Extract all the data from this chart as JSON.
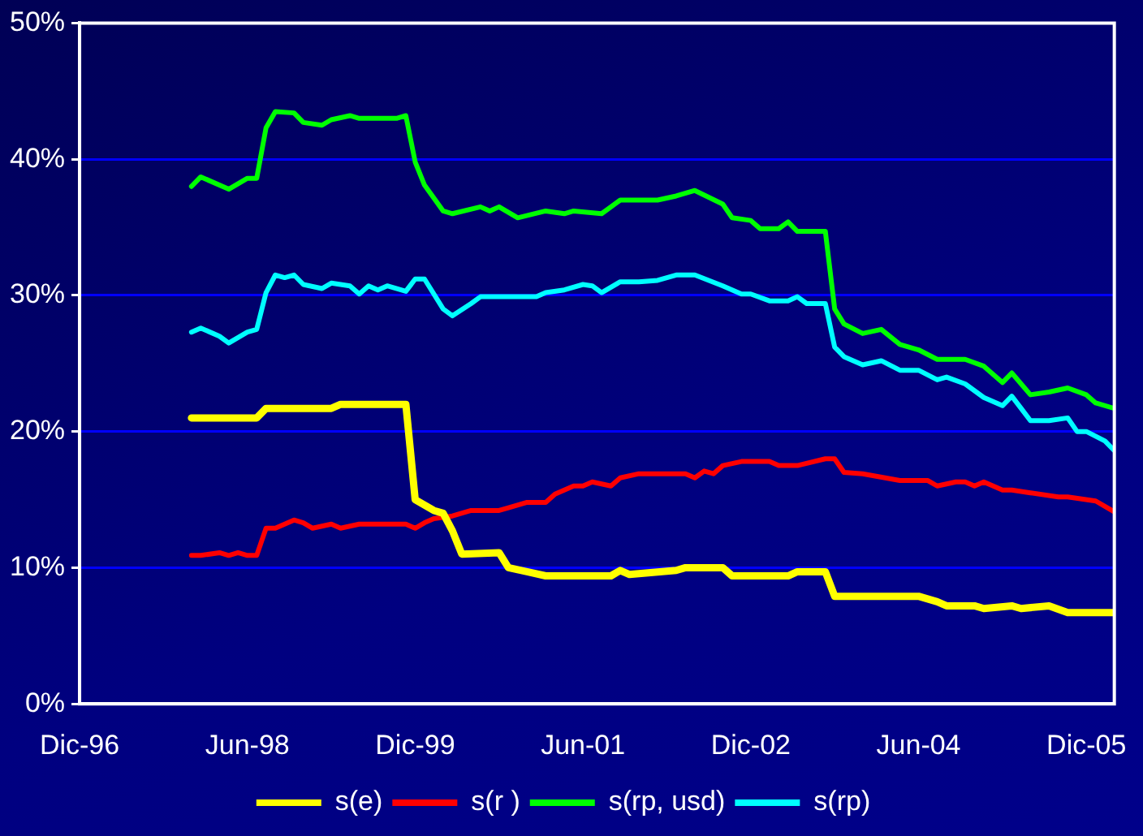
{
  "chart_data": {
    "type": "line",
    "marker": "none",
    "line_style": "solid",
    "grid": "y",
    "legend": "bottom",
    "xlim": [
      "1996-12",
      "2006-03"
    ],
    "xticks": [
      {
        "value": "1996-12",
        "label": "Dic-96"
      },
      {
        "value": "1998-06",
        "label": "Jun-98"
      },
      {
        "value": "1999-12",
        "label": "Dic-99"
      },
      {
        "value": "2001-06",
        "label": "Jun-01"
      },
      {
        "value": "2002-12",
        "label": "Dic-02"
      },
      {
        "value": "2004-06",
        "label": "Jun-04"
      },
      {
        "value": "2005-12",
        "label": "Dic-05"
      }
    ],
    "ylim": [
      0,
      50
    ],
    "yticks": [
      {
        "value": 0,
        "label": "0%"
      },
      {
        "value": 10,
        "label": "10%"
      },
      {
        "value": 20,
        "label": "20%"
      },
      {
        "value": 30,
        "label": "30%"
      },
      {
        "value": 40,
        "label": "40%"
      },
      {
        "value": 50,
        "label": "50%"
      }
    ],
    "series": [
      {
        "name": "s(e)",
        "color": "#ffff00",
        "x": [
          "1997-12",
          "1998-07",
          "1998-08",
          "1999-03",
          "1999-04",
          "1999-11",
          "1999-12",
          "2000-02",
          "2000-03",
          "2000-04",
          "2000-05",
          "2000-09",
          "2000-10",
          "2000-12",
          "2001-02",
          "2001-09",
          "2001-10",
          "2001-11",
          "2002-04",
          "2002-05",
          "2002-09",
          "2002-10",
          "2003-04",
          "2003-05",
          "2003-08",
          "2003-09",
          "2004-06",
          "2004-08",
          "2004-09",
          "2004-12",
          "2005-01",
          "2005-04",
          "2005-05",
          "2005-08",
          "2005-10",
          "2006-03"
        ],
        "values": [
          21.0,
          21.0,
          21.7,
          21.7,
          22.0,
          22.0,
          15.0,
          14.2,
          14.0,
          12.7,
          11.0,
          11.1,
          10.0,
          9.7,
          9.4,
          9.4,
          9.8,
          9.5,
          9.8,
          10.0,
          10.0,
          9.4,
          9.4,
          9.7,
          9.7,
          7.9,
          7.9,
          7.5,
          7.2,
          7.2,
          7.0,
          7.2,
          7.0,
          7.2,
          6.7,
          6.7
        ]
      },
      {
        "name": "s(r )",
        "color": "#ff0000",
        "x": [
          "1997-12",
          "1998-01",
          "1998-03",
          "1998-04",
          "1998-05",
          "1998-06",
          "1998-07",
          "1998-08",
          "1998-09",
          "1998-11",
          "1998-12",
          "1999-01",
          "1999-03",
          "1999-04",
          "1999-06",
          "1999-11",
          "1999-12",
          "2000-01",
          "2000-02",
          "2000-04",
          "2000-06",
          "2000-09",
          "2000-10",
          "2000-12",
          "2001-02",
          "2001-03",
          "2001-05",
          "2001-06",
          "2001-07",
          "2001-09",
          "2001-10",
          "2001-12",
          "2002-05",
          "2002-06",
          "2002-07",
          "2002-08",
          "2002-09",
          "2002-11",
          "2003-02",
          "2003-03",
          "2003-05",
          "2003-08",
          "2003-09",
          "2003-10",
          "2003-12",
          "2004-04",
          "2004-07",
          "2004-08",
          "2004-10",
          "2004-11",
          "2004-12",
          "2005-01",
          "2005-03",
          "2005-04",
          "2005-06",
          "2005-09",
          "2005-10",
          "2006-01",
          "2006-03"
        ],
        "values": [
          10.9,
          10.9,
          11.1,
          10.9,
          11.1,
          10.9,
          10.9,
          12.9,
          12.9,
          13.5,
          13.3,
          12.9,
          13.2,
          12.9,
          13.2,
          13.2,
          12.9,
          13.3,
          13.6,
          13.8,
          14.2,
          14.2,
          14.4,
          14.8,
          14.8,
          15.4,
          16.0,
          16.0,
          16.3,
          16.0,
          16.6,
          16.9,
          16.9,
          16.6,
          17.1,
          16.9,
          17.5,
          17.8,
          17.8,
          17.5,
          17.5,
          18.0,
          18.0,
          17.0,
          16.9,
          16.4,
          16.4,
          16.0,
          16.3,
          16.3,
          16.0,
          16.3,
          15.7,
          15.7,
          15.5,
          15.2,
          15.2,
          14.9,
          14.1
        ]
      },
      {
        "name": "s(rp, usd)",
        "color": "#00ff00",
        "x": [
          "1997-12",
          "1998-01",
          "1998-04",
          "1998-06",
          "1998-07",
          "1998-08",
          "1998-09",
          "1998-11",
          "1998-12",
          "1999-02",
          "1999-03",
          "1999-05",
          "1999-06",
          "1999-10",
          "1999-11",
          "1999-12",
          "2000-01",
          "2000-03",
          "2000-04",
          "2000-07",
          "2000-08",
          "2000-09",
          "2000-11",
          "2001-02",
          "2001-04",
          "2001-05",
          "2001-08",
          "2001-10",
          "2001-12",
          "2002-02",
          "2002-04",
          "2002-06",
          "2002-09",
          "2002-10",
          "2002-12",
          "2003-01",
          "2003-03",
          "2003-04",
          "2003-05",
          "2003-06",
          "2003-08",
          "2003-09",
          "2003-10",
          "2003-12",
          "2004-02",
          "2004-04",
          "2004-06",
          "2004-08",
          "2004-11",
          "2005-01",
          "2005-03",
          "2005-04",
          "2005-06",
          "2005-08",
          "2005-10",
          "2005-12",
          "2006-01",
          "2006-03"
        ],
        "values": [
          38.0,
          38.7,
          37.8,
          38.6,
          38.6,
          42.3,
          43.5,
          43.4,
          42.7,
          42.5,
          42.9,
          43.2,
          43.0,
          43.0,
          43.2,
          39.8,
          38.1,
          36.2,
          36.0,
          36.5,
          36.2,
          36.5,
          35.7,
          36.2,
          36.0,
          36.2,
          36.0,
          37.0,
          37.0,
          37.0,
          37.3,
          37.7,
          36.7,
          35.7,
          35.5,
          34.9,
          34.9,
          35.4,
          34.7,
          34.7,
          34.7,
          29.0,
          27.9,
          27.2,
          27.5,
          26.4,
          26.0,
          25.3,
          25.3,
          24.8,
          23.6,
          24.3,
          22.7,
          22.9,
          23.2,
          22.7,
          22.1,
          21.7
        ]
      },
      {
        "name": "s(rp)",
        "color": "#00ffff",
        "x": [
          "1997-12",
          "1998-01",
          "1998-03",
          "1998-04",
          "1998-06",
          "1998-07",
          "1998-08",
          "1998-09",
          "1998-10",
          "1998-11",
          "1998-12",
          "1999-02",
          "1999-03",
          "1999-05",
          "1999-06",
          "1999-07",
          "1999-08",
          "1999-09",
          "1999-11",
          "1999-12",
          "2000-01",
          "2000-03",
          "2000-04",
          "2000-06",
          "2000-07",
          "2001-01",
          "2001-02",
          "2001-04",
          "2001-06",
          "2001-07",
          "2001-08",
          "2001-10",
          "2001-12",
          "2002-02",
          "2002-04",
          "2002-06",
          "2002-09",
          "2002-11",
          "2002-12",
          "2003-02",
          "2003-04",
          "2003-05",
          "2003-06",
          "2003-08",
          "2003-09",
          "2003-10",
          "2003-12",
          "2004-02",
          "2004-04",
          "2004-06",
          "2004-08",
          "2004-09",
          "2004-11",
          "2005-01",
          "2005-03",
          "2005-04",
          "2005-05",
          "2005-06",
          "2005-08",
          "2005-10",
          "2005-11",
          "2005-12",
          "2006-02",
          "2006-03"
        ],
        "values": [
          27.3,
          27.6,
          27.0,
          26.5,
          27.3,
          27.5,
          30.2,
          31.5,
          31.3,
          31.5,
          30.8,
          30.5,
          30.9,
          30.7,
          30.1,
          30.7,
          30.4,
          30.7,
          30.3,
          31.2,
          31.2,
          29.0,
          28.5,
          29.4,
          29.9,
          29.9,
          30.2,
          30.4,
          30.8,
          30.7,
          30.2,
          31.0,
          31.0,
          31.1,
          31.5,
          31.5,
          30.7,
          30.1,
          30.1,
          29.6,
          29.6,
          29.9,
          29.4,
          29.4,
          26.2,
          25.5,
          24.9,
          25.2,
          24.5,
          24.5,
          23.8,
          24.0,
          23.5,
          22.5,
          21.9,
          22.6,
          21.7,
          20.8,
          20.8,
          21.0,
          20.0,
          20.0,
          19.3,
          18.6
        ]
      }
    ]
  }
}
